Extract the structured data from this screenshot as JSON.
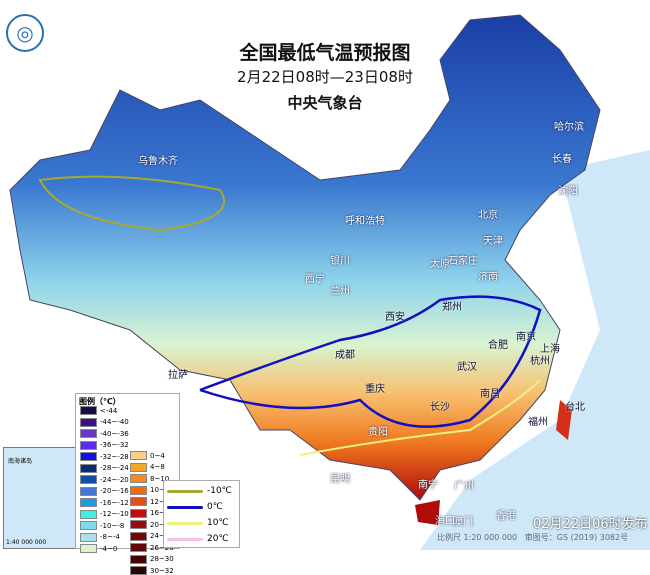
{
  "header": {
    "title": "全国最低气温预报图",
    "period": "2月22日08时—23日08时",
    "issuer": "中央气象台"
  },
  "cities": [
    "乌鲁木齐",
    "哈尔滨",
    "长春",
    "沈阳",
    "呼和浩特",
    "北京",
    "天津",
    "石家庄",
    "太原",
    "银川",
    "西宁",
    "兰州",
    "济南",
    "郑州",
    "西安",
    "合肥",
    "南京",
    "上海",
    "杭州",
    "武汉",
    "成都",
    "重庆",
    "拉萨",
    "长沙",
    "南昌",
    "福州",
    "台北",
    "贵阳",
    "昆明",
    "南宁",
    "广州",
    "澳门",
    "香港",
    "海口"
  ],
  "legend": {
    "title": "图例（℃）",
    "cold": [
      {
        "label": "<-44",
        "color": "#1b0a4a"
      },
      {
        "label": "-44~-40",
        "color": "#3a0f8a"
      },
      {
        "label": "-40~-36",
        "color": "#6a35c9"
      },
      {
        "label": "-36~-32",
        "color": "#5a2df0"
      },
      {
        "label": "-32~-28",
        "color": "#1010e0"
      },
      {
        "label": "-28~-24",
        "color": "#0a2a7a"
      },
      {
        "label": "-24~-20",
        "color": "#0e4fa8"
      },
      {
        "label": "-20~-16",
        "color": "#3f78d6"
      },
      {
        "label": "-16~-12",
        "color": "#1a9de8"
      },
      {
        "label": "-12~-10",
        "color": "#3ff0ea"
      },
      {
        "label": "-10~-8",
        "color": "#7fd8f0"
      },
      {
        "label": "-8~-4",
        "color": "#aee0ea"
      },
      {
        "label": "-4~0",
        "color": "#d9f3d0"
      }
    ],
    "warm": [
      {
        "label": "0~4",
        "color": "#f7d08a"
      },
      {
        "label": "4~8",
        "color": "#f5a623"
      },
      {
        "label": "8~10",
        "color": "#f58a1f"
      },
      {
        "label": "10~12",
        "color": "#f06a10"
      },
      {
        "label": "12~16",
        "color": "#e0501a"
      },
      {
        "label": "16~20",
        "color": "#c00d0d"
      },
      {
        "label": "20~24",
        "color": "#9a0a0a"
      },
      {
        "label": "24~26",
        "color": "#7a0505"
      },
      {
        "label": "26~28",
        "color": "#660505"
      },
      {
        "label": "28~30",
        "color": "#4a0303"
      },
      {
        "label": "30~32",
        "color": "#2e0202"
      }
    ]
  },
  "isolines": [
    {
      "label": "-10℃",
      "color": "#a8a830"
    },
    {
      "label": "0℃",
      "color": "#1010c0"
    },
    {
      "label": "10℃",
      "color": "#f0f080"
    },
    {
      "label": "20℃",
      "color": "#f4c0e8"
    }
  ],
  "inset": {
    "title": "南海诸岛",
    "scale": "1:40 000 000"
  },
  "footer": {
    "published": "02月22日06时发布",
    "scale": "比例尺 1:20 000 000",
    "review": "审图号：GS (2019) 3082号"
  }
}
